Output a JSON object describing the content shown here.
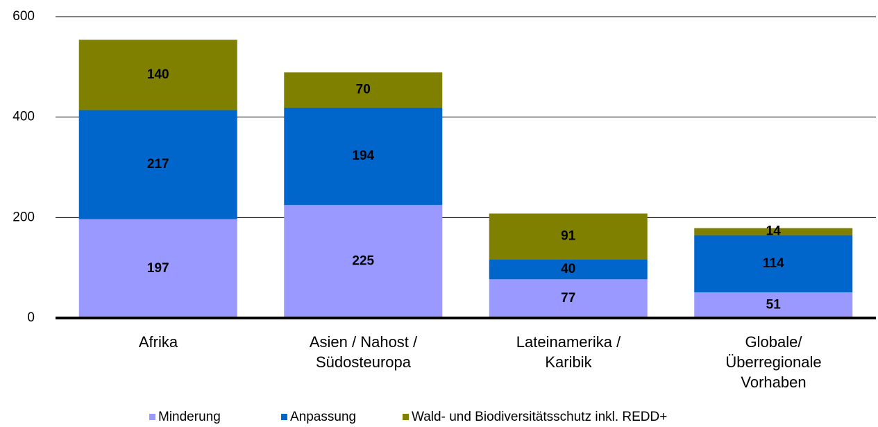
{
  "chart_data": {
    "type": "bar",
    "stacked": true,
    "categories": [
      "Afrika",
      "Asien / Nahost /\nSüdosteuropa",
      "Lateinamerika /\nKaribik",
      "Globale/\nÜberregionale\nVorhaben"
    ],
    "series": [
      {
        "name": "Minderung",
        "color": "#9999ff",
        "values": [
          197,
          225,
          77,
          51
        ]
      },
      {
        "name": "Anpassung",
        "color": "#0066cc",
        "values": [
          217,
          194,
          40,
          114
        ]
      },
      {
        "name": "Wald- und Biodiversitätsschutz inkl. REDD+",
        "color": "#808000",
        "values": [
          140,
          70,
          91,
          14
        ]
      }
    ],
    "ylim": [
      0,
      600
    ],
    "yticks": [
      0,
      200,
      400,
      600
    ],
    "grid": true,
    "legend": "bottom"
  }
}
